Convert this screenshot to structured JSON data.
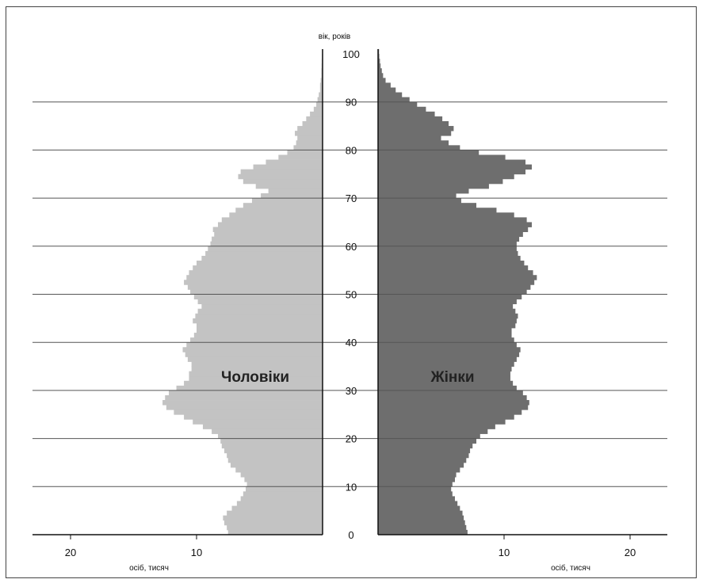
{
  "chart_data": {
    "type": "bar",
    "orientation": "horizontal-pyramid",
    "y_axis_title": "вік, років",
    "x_unit_left": "осіб, тисяч",
    "x_unit_right": "осіб, тисяч",
    "age_ticks": [
      0,
      10,
      20,
      30,
      40,
      50,
      60,
      70,
      80,
      90,
      100
    ],
    "x_ticks_left": [
      {
        "label": "20",
        "value": 20
      },
      {
        "label": "10",
        "value": 10
      }
    ],
    "x_ticks_right": [
      {
        "label": "10",
        "value": 10
      },
      {
        "label": "20",
        "value": 20
      }
    ],
    "ylim": [
      0,
      100
    ],
    "xlim": [
      0,
      23
    ],
    "grid": true,
    "series": [
      {
        "name": "Чоловіки",
        "side": "left",
        "color": "#c3c3c3",
        "ages": [
          0,
          1,
          2,
          3,
          4,
          5,
          6,
          7,
          8,
          9,
          10,
          11,
          12,
          13,
          14,
          15,
          16,
          17,
          18,
          19,
          20,
          21,
          22,
          23,
          24,
          25,
          26,
          27,
          28,
          29,
          30,
          31,
          32,
          33,
          34,
          35,
          36,
          37,
          38,
          39,
          40,
          41,
          42,
          43,
          44,
          45,
          46,
          47,
          48,
          49,
          50,
          51,
          52,
          53,
          54,
          55,
          56,
          57,
          58,
          59,
          60,
          61,
          62,
          63,
          64,
          65,
          66,
          67,
          68,
          69,
          70,
          71,
          72,
          73,
          74,
          75,
          76,
          77,
          78,
          79,
          80,
          81,
          82,
          83,
          84,
          85,
          86,
          87,
          88,
          89,
          90,
          91,
          92,
          93,
          94,
          95,
          96,
          97,
          98,
          99,
          100
        ],
        "values": [
          7.5,
          7.6,
          7.8,
          7.9,
          7.6,
          7.2,
          6.8,
          6.5,
          6.3,
          6.1,
          6.0,
          6.2,
          6.5,
          6.9,
          7.3,
          7.5,
          7.6,
          7.8,
          8.0,
          8.1,
          8.3,
          8.8,
          9.5,
          10.3,
          11.0,
          11.8,
          12.4,
          12.7,
          12.5,
          12.2,
          11.6,
          11.0,
          10.6,
          10.6,
          10.4,
          10.4,
          10.7,
          10.9,
          11.1,
          10.8,
          10.5,
          10.2,
          10.0,
          10.0,
          10.3,
          10.1,
          9.9,
          9.6,
          9.9,
          10.2,
          10.5,
          10.7,
          11.0,
          10.8,
          10.6,
          10.3,
          10.0,
          9.6,
          9.3,
          9.1,
          8.9,
          8.8,
          8.6,
          8.7,
          8.3,
          8.0,
          7.4,
          6.9,
          6.3,
          5.6,
          4.9,
          4.3,
          5.3,
          6.3,
          6.7,
          6.5,
          5.5,
          4.5,
          3.5,
          2.8,
          2.3,
          2.1,
          2.0,
          2.2,
          2.0,
          1.6,
          1.3,
          1.0,
          0.7,
          0.5,
          0.4,
          0.3,
          0.2,
          0.2,
          0.15,
          0.1,
          0.1,
          0.08,
          0.07,
          0.06,
          0.05
        ]
      },
      {
        "name": "Жінки",
        "side": "right",
        "color": "#6e6e6e",
        "ages": [
          0,
          1,
          2,
          3,
          4,
          5,
          6,
          7,
          8,
          9,
          10,
          11,
          12,
          13,
          14,
          15,
          16,
          17,
          18,
          19,
          20,
          21,
          22,
          23,
          24,
          25,
          26,
          27,
          28,
          29,
          30,
          31,
          32,
          33,
          34,
          35,
          36,
          37,
          38,
          39,
          40,
          41,
          42,
          43,
          44,
          45,
          46,
          47,
          48,
          49,
          50,
          51,
          52,
          53,
          54,
          55,
          56,
          57,
          58,
          59,
          60,
          61,
          62,
          63,
          64,
          65,
          66,
          67,
          68,
          69,
          70,
          71,
          72,
          73,
          74,
          75,
          76,
          77,
          78,
          79,
          80,
          81,
          82,
          83,
          84,
          85,
          86,
          87,
          88,
          89,
          90,
          91,
          92,
          93,
          94,
          95,
          96,
          97,
          98,
          99,
          100
        ],
        "values": [
          7.1,
          7.0,
          6.9,
          6.8,
          6.7,
          6.5,
          6.3,
          6.1,
          5.9,
          5.8,
          5.9,
          6.1,
          6.2,
          6.5,
          6.8,
          7.0,
          7.2,
          7.3,
          7.5,
          7.8,
          8.1,
          8.7,
          9.3,
          10.1,
          10.8,
          11.4,
          11.9,
          12.0,
          11.8,
          11.5,
          11.0,
          10.7,
          10.5,
          10.5,
          10.6,
          10.8,
          11.0,
          11.2,
          11.3,
          11.0,
          10.8,
          10.6,
          10.6,
          10.9,
          11.0,
          11.1,
          10.9,
          10.7,
          11.0,
          11.4,
          11.8,
          12.1,
          12.4,
          12.6,
          12.3,
          11.9,
          11.6,
          11.3,
          11.1,
          11.0,
          11.0,
          11.2,
          11.5,
          11.9,
          12.2,
          11.8,
          10.8,
          9.4,
          7.8,
          6.6,
          6.2,
          7.2,
          8.8,
          9.9,
          10.8,
          11.7,
          12.2,
          11.7,
          10.1,
          8.0,
          6.5,
          5.6,
          5.0,
          5.8,
          6.0,
          5.6,
          5.1,
          4.5,
          3.8,
          3.1,
          2.5,
          1.9,
          1.4,
          1.0,
          0.6,
          0.4,
          0.3,
          0.2,
          0.15,
          0.1,
          0.08
        ]
      }
    ]
  }
}
